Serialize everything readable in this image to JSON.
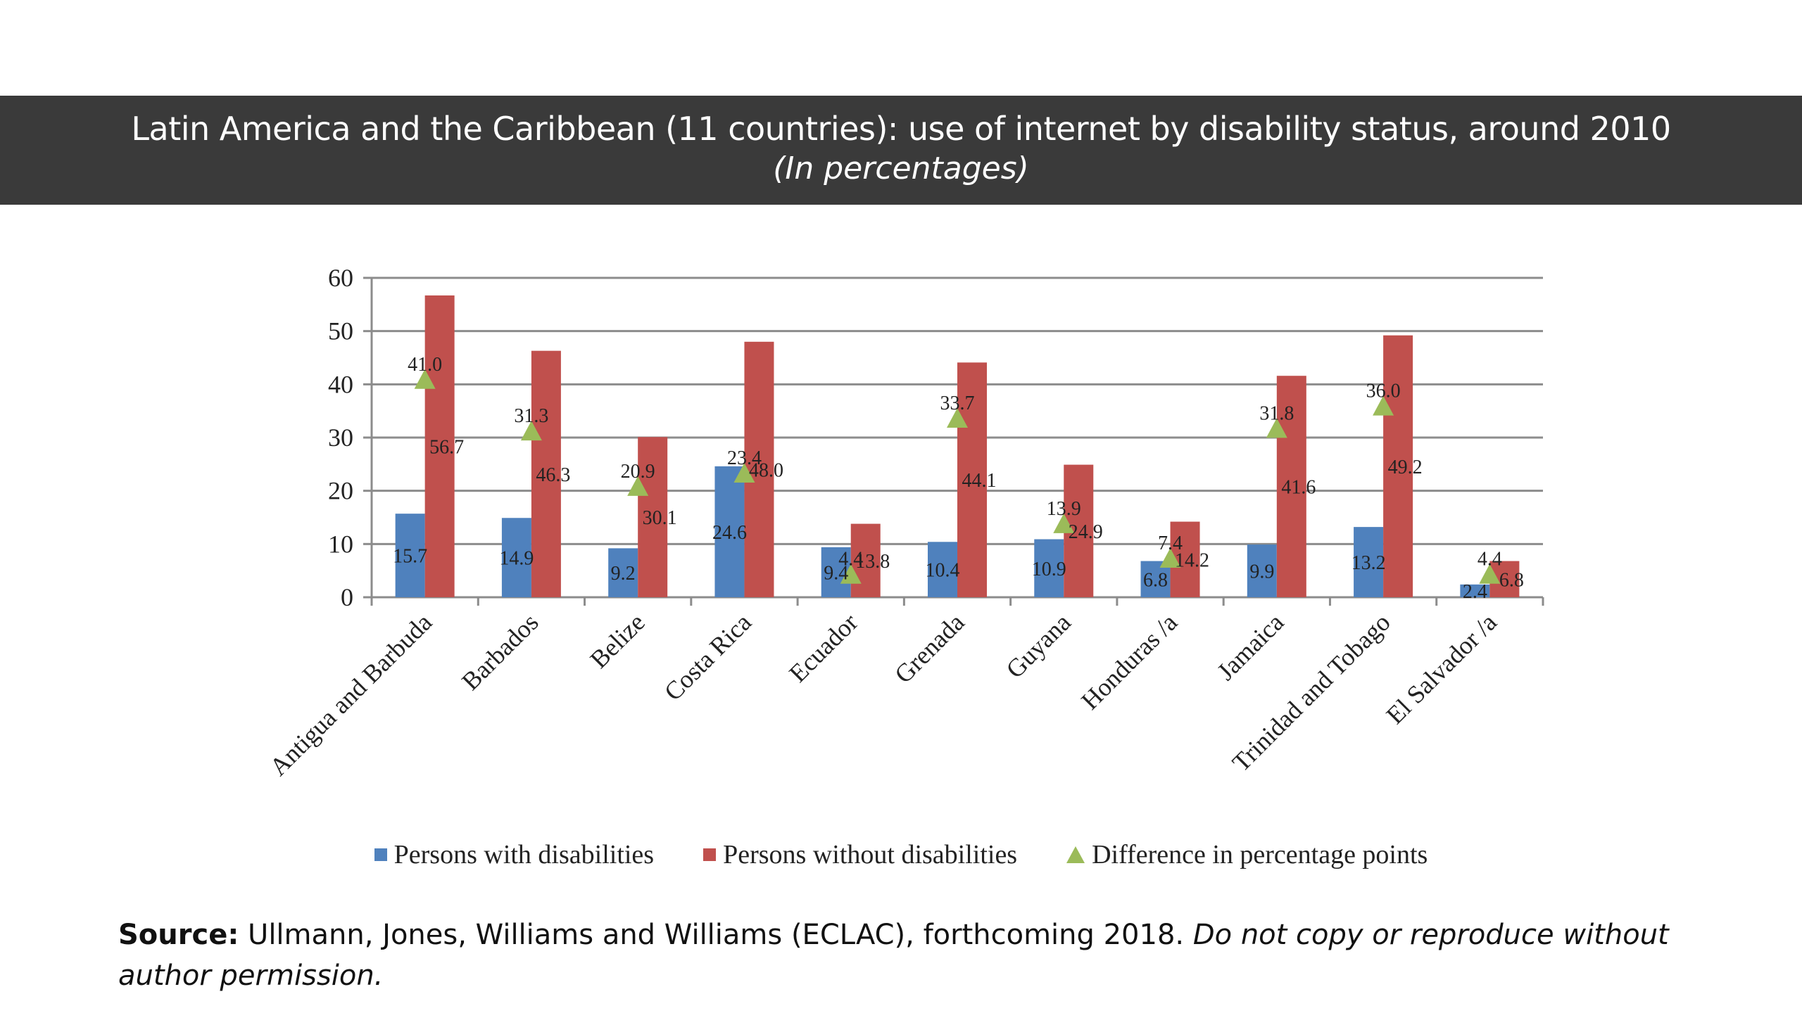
{
  "header": {
    "title": "Latin America and the Caribbean (11 countries): use of internet by disability status, around 2010",
    "subtitle": "(In percentages)"
  },
  "colors": {
    "with": "#4f81bd",
    "without": "#c0504d",
    "difference": "#9bbb59",
    "band": "#3a3a3a"
  },
  "chart_data": {
    "type": "bar",
    "categories": [
      "Antigua and Barbuda",
      "Barbados",
      "Belize",
      "Costa Rica",
      "Ecuador",
      "Grenada",
      "Guyana",
      "Honduras /a",
      "Jamaica",
      "Trinidad and Tobago",
      "El Salvador /a"
    ],
    "series": [
      {
        "name": "Persons with disabilities",
        "type": "bar",
        "values": [
          15.7,
          14.9,
          9.2,
          24.6,
          9.4,
          10.4,
          10.9,
          6.8,
          9.9,
          13.2,
          2.4
        ]
      },
      {
        "name": "Persons without disabilities",
        "type": "bar",
        "values": [
          56.7,
          46.3,
          30.1,
          48.0,
          13.8,
          44.1,
          24.9,
          14.2,
          41.6,
          49.2,
          6.8
        ]
      },
      {
        "name": "Difference in percentage points",
        "type": "marker",
        "values": [
          41.0,
          31.3,
          20.9,
          23.4,
          4.4,
          33.7,
          13.9,
          7.4,
          31.8,
          36.0,
          4.4
        ]
      }
    ],
    "value_labels": {
      "with": [
        "15.7",
        "14.9",
        "9.2",
        "24.6",
        "9.4",
        "10.4",
        "10.9",
        "6.8",
        "9.9",
        "13.2",
        "2.4"
      ],
      "without": [
        "56.7",
        "46.3",
        "30.1",
        "48.0",
        "13.8",
        "44.1",
        "24.9",
        "14.2",
        "41.6",
        "49.2",
        "6.8"
      ],
      "difference": [
        "41.0",
        "31.3",
        "20.9",
        "23.4",
        "4.4",
        "33.7",
        "13.9",
        "7.4",
        "31.8",
        "36.0",
        "4.4"
      ]
    },
    "ylim": [
      0,
      60
    ],
    "yticks": [
      "0",
      "10",
      "20",
      "30",
      "40",
      "50",
      "60"
    ],
    "grid": true,
    "legend_position": "bottom"
  },
  "legend": {
    "with_label": "Persons with disabilities",
    "without_label": "Persons without disabilities",
    "difference_label": "Difference in percentage points"
  },
  "source": {
    "label": "Source:",
    "text": " Ullmann, Jones, Williams and Williams (ECLAC), forthcoming 2018. ",
    "note": "Do not copy or reproduce without author permission."
  }
}
